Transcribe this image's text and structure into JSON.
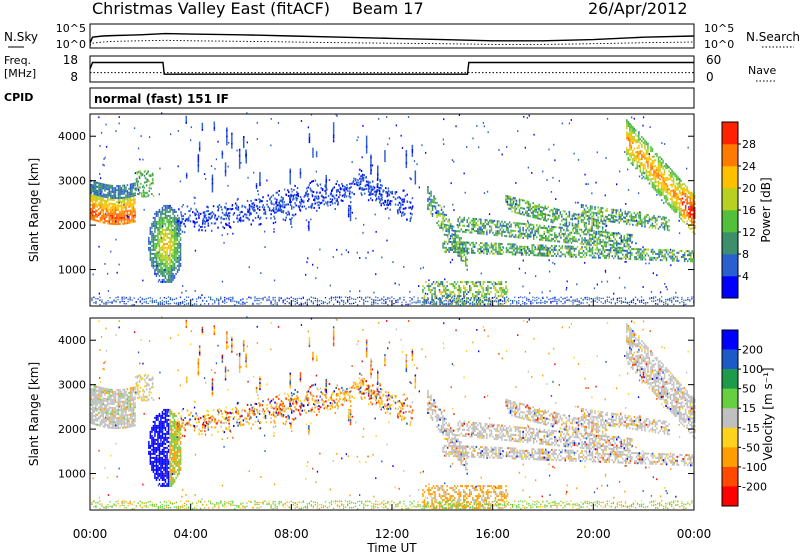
{
  "header": {
    "station": "Christmas Valley East (fitACF)",
    "beam": "Beam 17",
    "date": "26/Apr/2012"
  },
  "summary": {
    "nsky_label": "N.Sky",
    "nsearch_label": "N.Search",
    "noise_ticks": [
      "10^5",
      "10^0"
    ],
    "freq_label_line1": "Freq.",
    "freq_label_line2": "[MHz]",
    "freq_ticks": [
      "18",
      "8"
    ],
    "nave_label": "Nave",
    "nave_ticks": [
      "60",
      "0"
    ],
    "cpid_label": "CPID",
    "cpid_text": "normal (fast) 151 IF"
  },
  "colors": {
    "power": [
      "#0000ff",
      "#2a5fd0",
      "#3c8f6a",
      "#52c03a",
      "#b8d020",
      "#ffc000",
      "#ff7a00",
      "#ff2200"
    ],
    "velocity": [
      "#0000ff",
      "#1d5ac8",
      "#1f9a4a",
      "#66d040",
      "#c0c0c0",
      "#ffd21e",
      "#ff9e00",
      "#ff4a00",
      "#ff0000"
    ],
    "scatter_gray": "#c0c0c0"
  },
  "chart_data": [
    {
      "type": "line",
      "name": "noise-panel",
      "y_ticks": [
        "10^5",
        "10^0"
      ],
      "series": [
        {
          "name": "N.Sky",
          "style": "solid",
          "x": [
            0,
            0.1,
            0.5,
            1,
            2,
            3,
            4,
            6,
            8,
            10,
            12,
            14,
            16,
            18,
            20,
            22,
            24
          ],
          "y": [
            0.2,
            0.45,
            0.5,
            0.52,
            0.55,
            0.6,
            0.58,
            0.55,
            0.5,
            0.45,
            0.4,
            0.35,
            0.3,
            0.3,
            0.35,
            0.45,
            0.5
          ]
        },
        {
          "name": "N.Search",
          "style": "dotted",
          "x": [
            0,
            0.1,
            0.5,
            1,
            2,
            3,
            4,
            6,
            8,
            10,
            12,
            14,
            16,
            18,
            20,
            22,
            24
          ],
          "y": [
            0.1,
            0.2,
            0.25,
            0.28,
            0.3,
            0.32,
            0.3,
            0.28,
            0.25,
            0.22,
            0.2,
            0.18,
            0.15,
            0.15,
            0.18,
            0.22,
            0.25
          ]
        }
      ]
    },
    {
      "type": "line",
      "name": "frequency-panel",
      "y_ticks": [
        "18",
        "8"
      ],
      "y_ticks_right": [
        "60",
        "0"
      ],
      "series": [
        {
          "name": "Freq.",
          "style": "solid",
          "x": [
            0,
            0.1,
            2.9,
            2.95,
            15,
            15.05,
            24
          ],
          "y": [
            13,
            15.5,
            15.5,
            11,
            11,
            15.5,
            15.5
          ]
        },
        {
          "name": "Nave",
          "style": "dotted",
          "x": [
            0,
            24
          ],
          "y": [
            11.6,
            11.6
          ]
        }
      ]
    },
    {
      "type": "heatmap",
      "name": "power-panel",
      "ylabel": "Slant Range [km]",
      "yticks": [
        1000,
        2000,
        3000,
        4000
      ],
      "ylim": [
        180,
        4500
      ],
      "xlim": [
        0,
        24
      ],
      "colorbar": {
        "label": "Power [dB]",
        "ticks": [
          4,
          8,
          12,
          16,
          20,
          24,
          28
        ],
        "range": [
          0,
          32
        ]
      },
      "features": [
        {
          "x": [
            0,
            1.8
          ],
          "y": [
            2100,
            3000
          ],
          "value": 22
        },
        {
          "x": [
            2.2,
            3.6
          ],
          "y": [
            800,
            2500
          ],
          "value": 18
        },
        {
          "x": [
            13.4,
            24
          ],
          "y": [
            900,
            2600
          ],
          "value": 10
        },
        {
          "x": [
            21.5,
            24
          ],
          "y": [
            2000,
            4400
          ],
          "value": 18
        }
      ]
    },
    {
      "type": "heatmap",
      "name": "velocity-panel",
      "ylabel": "Slant Range [km]",
      "yticks": [
        1000,
        2000,
        3000,
        4000
      ],
      "ylim": [
        180,
        4500
      ],
      "xlim": [
        0,
        24
      ],
      "xlabel": "Time UT",
      "xticks": [
        "00:00",
        "04:00",
        "08:00",
        "12:00",
        "16:00",
        "20:00",
        "00:00"
      ],
      "colorbar": {
        "label": "Velocity [m s⁻¹]",
        "ticks": [
          "200",
          "100",
          "50",
          "15",
          "-15",
          "-50",
          "-100",
          "-200"
        ]
      },
      "features": [
        {
          "x": [
            0,
            1.8
          ],
          "y": [
            2100,
            3000
          ],
          "value": 0
        },
        {
          "x": [
            2.4,
            3.5
          ],
          "y": [
            800,
            2300
          ],
          "value": 220
        },
        {
          "x": [
            13.4,
            24
          ],
          "y": [
            900,
            2600
          ],
          "value": 0
        }
      ]
    }
  ]
}
